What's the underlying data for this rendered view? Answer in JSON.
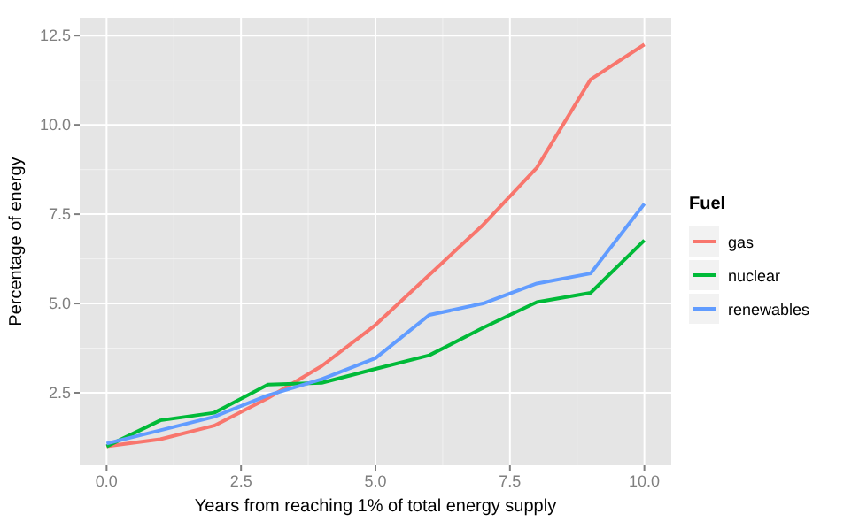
{
  "chart_data": {
    "type": "line",
    "xlabel": "Years from reaching 1% of total energy supply",
    "ylabel": "Percentage of energy",
    "legend_title": "Fuel",
    "legend": "right",
    "grid": true,
    "x": [
      0,
      1,
      2,
      3,
      4,
      5,
      6,
      7,
      8,
      9,
      10
    ],
    "xlim": [
      -0.5,
      10.5
    ],
    "xticks": [
      {
        "value": 0,
        "label": "0.0"
      },
      {
        "value": 2.5,
        "label": "2.5"
      },
      {
        "value": 5,
        "label": "5.0"
      },
      {
        "value": 7.5,
        "label": "7.5"
      },
      {
        "value": 10,
        "label": "10.0"
      }
    ],
    "ylim": [
      0.47,
      13
    ],
    "yticks": [
      2.5,
      {
        "value": 5,
        "label": "5.0"
      },
      7.5,
      {
        "value": 10,
        "label": "10.0"
      },
      12.5
    ],
    "series": [
      {
        "name": "gas",
        "color": "#f8766d",
        "values": [
          1.0,
          1.2,
          1.58,
          2.35,
          3.25,
          4.4,
          5.8,
          7.2,
          8.8,
          11.27,
          12.25
        ]
      },
      {
        "name": "nuclear",
        "color": "#00ba38",
        "values": [
          1.0,
          1.73,
          1.94,
          2.73,
          2.78,
          3.17,
          3.55,
          4.32,
          5.04,
          5.3,
          6.77
        ]
      },
      {
        "name": "renewables",
        "color": "#619cff",
        "values": [
          1.08,
          1.45,
          1.83,
          2.43,
          2.88,
          3.47,
          4.68,
          5.0,
          5.56,
          5.84,
          7.79
        ]
      }
    ]
  }
}
